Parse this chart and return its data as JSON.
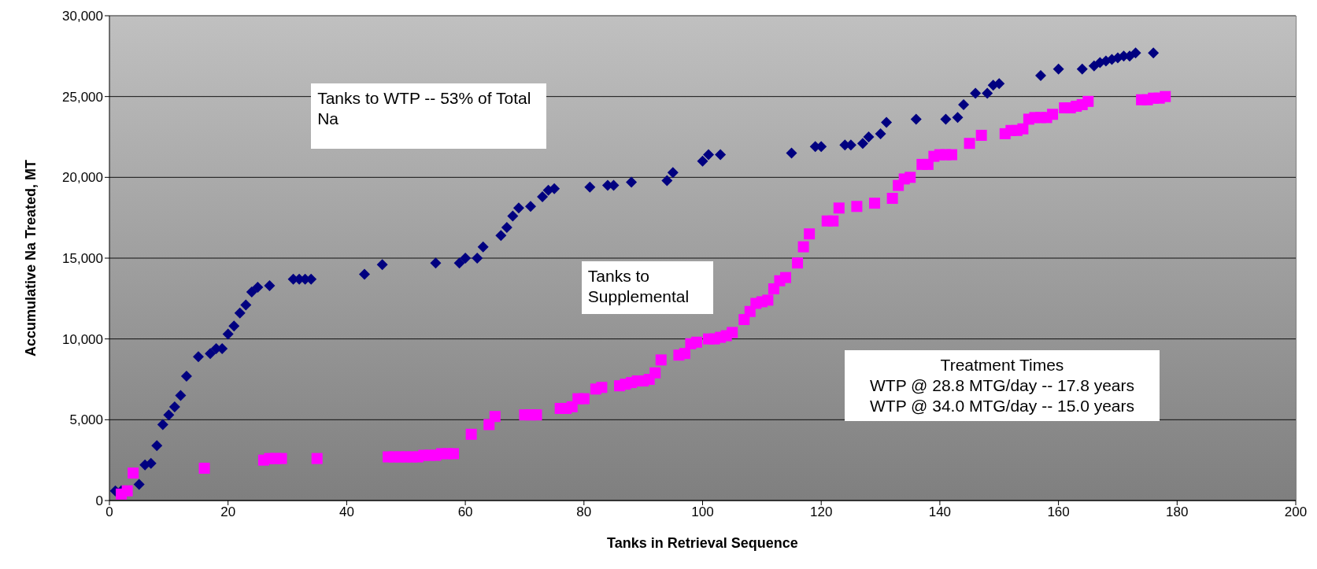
{
  "chart_data": {
    "type": "scatter",
    "xlabel": "Tanks in Retrieval Sequence",
    "ylabel": "Accumulative Na Treated, MT",
    "xlim": [
      0,
      200
    ],
    "xticks": [
      0,
      20,
      40,
      60,
      80,
      100,
      120,
      140,
      160,
      180,
      200
    ],
    "ylim": [
      0,
      30000
    ],
    "yticks": [
      0,
      {
        "value": 5000,
        "label": "5,000"
      },
      {
        "value": 10000,
        "label": "10,000"
      },
      {
        "value": 15000,
        "label": "15,000"
      },
      {
        "value": 20000,
        "label": "20,000"
      },
      {
        "value": 25000,
        "label": "25,000"
      },
      {
        "value": 30000,
        "label": "30,000"
      }
    ],
    "grid": "y",
    "legend": false,
    "annotations": [
      "Tanks to WTP -- 53% of Total Na",
      "Tanks to Supplemental",
      "Treatment Times\nWTP @ 28.8 MTG/day -- 17.8 years\nWTP @ 34.0 MTG/day -- 15.0 years"
    ],
    "series": [
      {
        "color": "#000080",
        "marker": "diamond",
        "x": [
          1,
          2,
          3,
          5,
          6,
          7,
          8,
          9,
          10,
          11,
          12,
          13,
          15,
          17,
          18,
          19,
          20,
          21,
          22,
          23,
          24,
          25,
          27,
          31,
          32,
          33,
          34,
          43,
          46,
          55,
          59,
          60,
          62,
          63,
          66,
          67,
          68,
          69,
          71,
          73,
          74,
          75,
          81,
          84,
          85,
          88,
          94,
          95,
          100,
          101,
          103,
          115,
          119,
          120,
          124,
          125,
          127,
          128,
          130,
          131,
          136,
          141,
          143,
          144,
          146,
          148,
          149,
          150,
          157,
          160,
          164,
          166,
          167,
          168,
          169,
          170,
          171,
          172,
          173,
          176
        ],
        "values": [
          600,
          600,
          null,
          1000,
          2200,
          2300,
          3400,
          4700,
          5300,
          5800,
          6500,
          7700,
          8900,
          9100,
          9400,
          9400,
          10300,
          10800,
          11600,
          12100,
          12900,
          13200,
          13300,
          13700,
          13700,
          13700,
          13700,
          14000,
          14600,
          14700,
          14700,
          15000,
          15000,
          15700,
          16400,
          16900,
          17600,
          18100,
          18200,
          18800,
          19200,
          19300,
          19400,
          19500,
          19500,
          19700,
          19800,
          20300,
          21000,
          21400,
          21400,
          21500,
          21900,
          21900,
          22000,
          22000,
          22100,
          22500,
          22700,
          23400,
          23600,
          23600,
          23700,
          24500,
          25200,
          25200,
          25700,
          25800,
          26300,
          26700,
          26700,
          26900,
          27100,
          27200,
          27300,
          27400,
          27500,
          27500,
          27700,
          27700
        ]
      },
      {
        "color": "#ff00ff",
        "marker": "square",
        "x": [
          2,
          3,
          4,
          16,
          26,
          27,
          28,
          29,
          35,
          47,
          48,
          49,
          50,
          51,
          52,
          53,
          54,
          55,
          56,
          57,
          58,
          61,
          64,
          65,
          70,
          71,
          72,
          76,
          77,
          78,
          79,
          80,
          82,
          83,
          86,
          87,
          88,
          89,
          90,
          91,
          92,
          93,
          96,
          97,
          98,
          99,
          101,
          102,
          103,
          104,
          105,
          107,
          108,
          109,
          110,
          111,
          112,
          113,
          114,
          116,
          117,
          118,
          121,
          122,
          123,
          126,
          129,
          132,
          133,
          134,
          135,
          137,
          138,
          139,
          140,
          141,
          142,
          145,
          147,
          151,
          152,
          153,
          154,
          155,
          156,
          157,
          158,
          159,
          161,
          162,
          163,
          164,
          165,
          174,
          175,
          176,
          177,
          178
        ],
        "values": [
          400,
          600,
          1700,
          2000,
          2500,
          2600,
          2600,
          2600,
          2600,
          2700,
          2700,
          2700,
          2700,
          2700,
          2700,
          2800,
          2800,
          2800,
          2900,
          2900,
          2900,
          4100,
          4700,
          5200,
          5300,
          5300,
          5300,
          5700,
          5700,
          5800,
          6300,
          6300,
          6900,
          7000,
          7100,
          7200,
          7300,
          7400,
          7400,
          7500,
          7900,
          8700,
          9000,
          9100,
          9700,
          9800,
          10000,
          10000,
          10100,
          10200,
          10400,
          11200,
          11700,
          12200,
          12300,
          12400,
          13100,
          13600,
          13800,
          14700,
          15700,
          16500,
          17300,
          17300,
          18100,
          18200,
          18400,
          18700,
          19500,
          19900,
          20000,
          20800,
          20800,
          21300,
          21400,
          21400,
          21400,
          22100,
          22600,
          22700,
          22900,
          22900,
          23000,
          23600,
          23700,
          23700,
          23700,
          23900,
          24300,
          24300,
          24400,
          24500,
          24700,
          24800,
          24800,
          24900,
          24900,
          25000
        ]
      }
    ]
  }
}
